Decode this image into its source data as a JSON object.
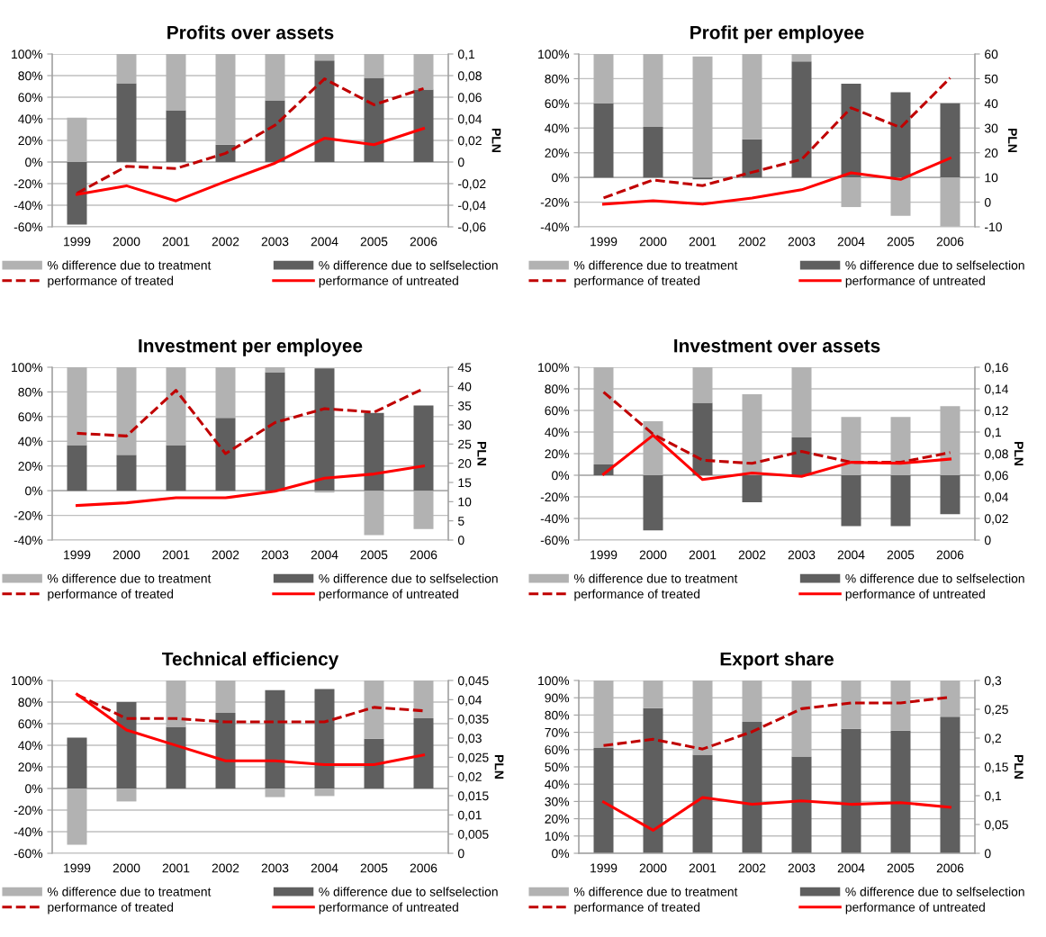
{
  "chart_data": [
    {
      "type": "bar",
      "title": "Profits over assets",
      "y2label": "PLN",
      "categories": [
        "1999",
        "2000",
        "2001",
        "2002",
        "2003",
        "2004",
        "2005",
        "2006"
      ],
      "stacked": true,
      "grid": "y",
      "legend": "bottom",
      "ylim": [
        -60,
        100
      ],
      "yticks": [
        {
          "value": -60,
          "label": "-60%"
        },
        {
          "value": -40,
          "label": "-40%"
        },
        {
          "value": -20,
          "label": "-20%"
        },
        {
          "value": 0,
          "label": "0%"
        },
        {
          "value": 20,
          "label": "20%"
        },
        {
          "value": 40,
          "label": "40%"
        },
        {
          "value": 60,
          "label": "60%"
        },
        {
          "value": 80,
          "label": "80%"
        },
        {
          "value": 100,
          "label": "100%"
        }
      ],
      "y2lim": [
        -0.06,
        0.1
      ],
      "y2ticks": [
        {
          "value": -0.06,
          "label": "-0,06"
        },
        {
          "value": -0.04,
          "label": "-0,04"
        },
        {
          "value": -0.02,
          "label": "-0,02"
        },
        0,
        {
          "value": 0.02,
          "label": "0,02"
        },
        {
          "value": 0.04,
          "label": "0,04"
        },
        {
          "value": 0.06,
          "label": "0,06"
        },
        {
          "value": 0.08,
          "label": "0,08"
        },
        {
          "value": 0.1,
          "label": "0,1"
        }
      ],
      "series": [
        {
          "name": "% difference due to selfselection",
          "color": "#5f5f5f",
          "values": [
            -58,
            73,
            48,
            16,
            57,
            94,
            78,
            67
          ]
        },
        {
          "name": "% difference due to treatment",
          "color": "#b2b2b2",
          "values": [
            41,
            27,
            52,
            84,
            43,
            6,
            22,
            33
          ]
        },
        {
          "name": "performance of treated",
          "type": "line",
          "axis": "y2",
          "color": "#c00000",
          "line_style": "dashed",
          "marker": "none",
          "values": [
            -0.029,
            -0.004,
            -0.006,
            0.008,
            0.034,
            0.077,
            0.053,
            0.068
          ]
        },
        {
          "name": "performance of untreated",
          "type": "line",
          "axis": "y2",
          "color": "#ff0000",
          "line_style": "solid",
          "marker": "none",
          "values": [
            -0.03,
            -0.022,
            -0.036,
            -0.018,
            -0.001,
            0.022,
            0.016,
            0.031
          ]
        }
      ]
    },
    {
      "type": "bar",
      "title": "Profit per employee",
      "y2label": "PLN",
      "categories": [
        "1999",
        "2000",
        "2001",
        "2002",
        "2003",
        "2004",
        "2005",
        "2006"
      ],
      "stacked": true,
      "grid": "y",
      "legend": "bottom",
      "ylim": [
        -40,
        100
      ],
      "yticks": [
        {
          "value": -40,
          "label": "-40%"
        },
        {
          "value": -20,
          "label": "-20%"
        },
        {
          "value": 0,
          "label": "0%"
        },
        {
          "value": 20,
          "label": "20%"
        },
        {
          "value": 40,
          "label": "40%"
        },
        {
          "value": 60,
          "label": "60%"
        },
        {
          "value": 80,
          "label": "80%"
        },
        {
          "value": 100,
          "label": "100%"
        }
      ],
      "y2lim": [
        -10,
        60
      ],
      "y2ticks": [
        -10,
        0,
        10,
        20,
        30,
        40,
        50,
        60
      ],
      "series": [
        {
          "name": "% difference due to selfselection",
          "color": "#5f5f5f",
          "values": [
            60,
            41,
            -1.5,
            31,
            94,
            76,
            69,
            60
          ]
        },
        {
          "name": "% difference due to treatment",
          "color": "#b2b2b2",
          "values": [
            40,
            59,
            98,
            69,
            6,
            -24,
            -31,
            -40
          ]
        },
        {
          "name": "performance of treated",
          "type": "line",
          "axis": "y2",
          "color": "#c00000",
          "line_style": "dashed",
          "marker": "none",
          "values": [
            1.7,
            9.0,
            6.7,
            12.1,
            17.3,
            38.2,
            30.2,
            50.3
          ]
        },
        {
          "name": "performance of untreated",
          "type": "line",
          "axis": "y2",
          "color": "#ff0000",
          "line_style": "solid",
          "marker": "none",
          "values": [
            -0.8,
            0.6,
            -0.8,
            1.7,
            5.0,
            11.9,
            9.2,
            17.8
          ]
        }
      ]
    },
    {
      "type": "bar",
      "title": "Investment per employee",
      "y2label": "PLN",
      "categories": [
        "1999",
        "2000",
        "2001",
        "2002",
        "2003",
        "2004",
        "2005",
        "2006"
      ],
      "stacked": true,
      "grid": "y",
      "legend": "bottom",
      "ylim": [
        -40,
        100
      ],
      "yticks": [
        {
          "value": -40,
          "label": "-40%"
        },
        {
          "value": -20,
          "label": "-20%"
        },
        {
          "value": 0,
          "label": "0%"
        },
        {
          "value": 20,
          "label": "20%"
        },
        {
          "value": 40,
          "label": "40%"
        },
        {
          "value": 60,
          "label": "60%"
        },
        {
          "value": 80,
          "label": "80%"
        },
        {
          "value": 100,
          "label": "100%"
        }
      ],
      "y2lim": [
        0,
        45
      ],
      "y2ticks": [
        0,
        5,
        10,
        15,
        20,
        25,
        30,
        35,
        40,
        45
      ],
      "series": [
        {
          "name": "% difference due to selfselection",
          "color": "#5f5f5f",
          "values": [
            37,
            29,
            37,
            59,
            96,
            99,
            63,
            69
          ]
        },
        {
          "name": "% difference due to treatment",
          "color": "#b2b2b2",
          "values": [
            63,
            71,
            63,
            41,
            4,
            -1.5,
            -36,
            -31
          ]
        },
        {
          "name": "performance of treated",
          "type": "line",
          "axis": "y2",
          "color": "#c00000",
          "line_style": "dashed",
          "marker": "none",
          "values": [
            27.8,
            27.1,
            39.0,
            22.5,
            30.6,
            34.2,
            33.3,
            39.4
          ]
        },
        {
          "name": "performance of untreated",
          "type": "line",
          "axis": "y2",
          "color": "#ff0000",
          "line_style": "solid",
          "marker": "none",
          "values": [
            9.0,
            9.7,
            11.0,
            11.0,
            12.7,
            16.1,
            17.2,
            19.3
          ]
        }
      ]
    },
    {
      "type": "bar",
      "title": "Investment over assets",
      "y2label": "PLN",
      "categories": [
        "1999",
        "2000",
        "2001",
        "2002",
        "2003",
        "2004",
        "2005",
        "2006"
      ],
      "stacked": true,
      "grid": "y",
      "legend": "bottom",
      "ylim": [
        -60,
        100
      ],
      "yticks": [
        {
          "value": -60,
          "label": "-60%"
        },
        {
          "value": -40,
          "label": "-40%"
        },
        {
          "value": -20,
          "label": "-20%"
        },
        {
          "value": 0,
          "label": "0%"
        },
        {
          "value": 20,
          "label": "20%"
        },
        {
          "value": 40,
          "label": "40%"
        },
        {
          "value": 60,
          "label": "60%"
        },
        {
          "value": 80,
          "label": "80%"
        },
        {
          "value": 100,
          "label": "100%"
        }
      ],
      "y2lim": [
        0,
        0.16
      ],
      "y2ticks": [
        0,
        {
          "value": 0.02,
          "label": "0,02"
        },
        {
          "value": 0.04,
          "label": "0,04"
        },
        {
          "value": 0.06,
          "label": "0,06"
        },
        {
          "value": 0.08,
          "label": "0,08"
        },
        {
          "value": 0.1,
          "label": "0,1"
        },
        {
          "value": 0.12,
          "label": "0,12"
        },
        {
          "value": 0.14,
          "label": "0,14"
        },
        {
          "value": 0.16,
          "label": "0,16"
        }
      ],
      "series": [
        {
          "name": "% difference due to selfselection",
          "color": "#5f5f5f",
          "values": [
            10,
            -51,
            67,
            -25,
            35,
            -47,
            -47,
            -36
          ]
        },
        {
          "name": "% difference due to treatment",
          "color": "#b2b2b2",
          "values": [
            90,
            50,
            33,
            75,
            65,
            54,
            54,
            64
          ]
        },
        {
          "name": "performance of treated",
          "type": "line",
          "axis": "y2",
          "color": "#c00000",
          "line_style": "dashed",
          "marker": "none",
          "values": [
            0.137,
            0.098,
            0.074,
            0.071,
            0.082,
            0.072,
            0.072,
            0.081
          ]
        },
        {
          "name": "performance of untreated",
          "type": "line",
          "axis": "y2",
          "color": "#ff0000",
          "line_style": "solid",
          "marker": "none",
          "values": [
            0.061,
            0.097,
            0.056,
            0.062,
            0.059,
            0.072,
            0.071,
            0.075
          ]
        }
      ]
    },
    {
      "type": "bar",
      "title": "Technical efficiency",
      "y2label": "PLN",
      "categories": [
        "1999",
        "2000",
        "2001",
        "2002",
        "2003",
        "2004",
        "2005",
        "2006"
      ],
      "stacked": true,
      "grid": "y",
      "legend": "bottom",
      "ylim": [
        -60,
        100
      ],
      "yticks": [
        {
          "value": -60,
          "label": "-60%"
        },
        {
          "value": -40,
          "label": "-40%"
        },
        {
          "value": -20,
          "label": "-20%"
        },
        {
          "value": 0,
          "label": "0%"
        },
        {
          "value": 20,
          "label": "20%"
        },
        {
          "value": 40,
          "label": "40%"
        },
        {
          "value": 60,
          "label": "60%"
        },
        {
          "value": 80,
          "label": "80%"
        },
        {
          "value": 100,
          "label": "100%"
        }
      ],
      "y2lim": [
        0,
        0.045
      ],
      "y2ticks": [
        0,
        {
          "value": 0.005,
          "label": "0,005"
        },
        {
          "value": 0.01,
          "label": "0,01"
        },
        {
          "value": 0.015,
          "label": "0,015"
        },
        {
          "value": 0.02,
          "label": "0,02"
        },
        {
          "value": 0.025,
          "label": "0,025"
        },
        {
          "value": 0.03,
          "label": "0,03"
        },
        {
          "value": 0.035,
          "label": "0,035"
        },
        {
          "value": 0.04,
          "label": "0,04"
        },
        {
          "value": 0.045,
          "label": "0,045"
        }
      ],
      "series": [
        {
          "name": "% difference due to selfselection",
          "color": "#5f5f5f",
          "values": [
            47,
            80,
            57,
            70,
            91,
            92,
            46,
            65
          ]
        },
        {
          "name": "% difference due to treatment",
          "color": "#b2b2b2",
          "values": [
            -52,
            -12,
            43,
            30,
            -8,
            -7,
            54,
            35
          ]
        },
        {
          "name": "performance of treated",
          "type": "line",
          "axis": "y2",
          "color": "#c00000",
          "line_style": "dashed",
          "marker": "none",
          "values": [
            0.0413,
            0.0351,
            0.0351,
            0.0342,
            0.0342,
            0.0342,
            0.038,
            0.0371
          ]
        },
        {
          "name": "performance of untreated",
          "type": "line",
          "axis": "y2",
          "color": "#ff0000",
          "line_style": "solid",
          "marker": "none",
          "values": [
            0.0414,
            0.0321,
            0.0281,
            0.0241,
            0.0241,
            0.0231,
            0.0231,
            0.0256
          ]
        }
      ]
    },
    {
      "type": "bar",
      "title": "Export share",
      "y2label": "PLN",
      "categories": [
        "1999",
        "2000",
        "2001",
        "2002",
        "2003",
        "2004",
        "2005",
        "2006"
      ],
      "stacked": true,
      "grid": "y",
      "legend": "bottom",
      "ylim": [
        0,
        100
      ],
      "yticks": [
        {
          "value": 0,
          "label": "0%"
        },
        {
          "value": 10,
          "label": "10%"
        },
        {
          "value": 20,
          "label": "20%"
        },
        {
          "value": 30,
          "label": "30%"
        },
        {
          "value": 40,
          "label": "40%"
        },
        {
          "value": 50,
          "label": "50%"
        },
        {
          "value": 60,
          "label": "60%"
        },
        {
          "value": 70,
          "label": "70%"
        },
        {
          "value": 80,
          "label": "80%"
        },
        {
          "value": 90,
          "label": "90%"
        },
        {
          "value": 100,
          "label": "100%"
        }
      ],
      "y2lim": [
        0,
        0.3
      ],
      "y2ticks": [
        0,
        {
          "value": 0.05,
          "label": "0,05"
        },
        {
          "value": 0.1,
          "label": "0,1"
        },
        {
          "value": 0.15,
          "label": "0,15"
        },
        {
          "value": 0.2,
          "label": "0,2"
        },
        {
          "value": 0.25,
          "label": "0,25"
        },
        {
          "value": 0.3,
          "label": "0,3"
        }
      ],
      "series": [
        {
          "name": "% difference due to selfselection",
          "color": "#5f5f5f",
          "values": [
            61,
            84,
            57,
            76,
            56,
            72,
            71,
            79
          ]
        },
        {
          "name": "% difference due to treatment",
          "color": "#b2b2b2",
          "values": [
            39,
            16,
            43,
            24,
            44,
            28,
            29,
            21
          ]
        },
        {
          "name": "performance of treated",
          "type": "line",
          "axis": "y2",
          "color": "#c00000",
          "line_style": "dashed",
          "marker": "none",
          "values": [
            0.187,
            0.198,
            0.181,
            0.211,
            0.251,
            0.261,
            0.261,
            0.271
          ]
        },
        {
          "name": "performance of untreated",
          "type": "line",
          "axis": "y2",
          "color": "#ff0000",
          "line_style": "solid",
          "marker": "none",
          "values": [
            0.089,
            0.04,
            0.097,
            0.085,
            0.091,
            0.085,
            0.088,
            0.08
          ]
        }
      ]
    }
  ]
}
